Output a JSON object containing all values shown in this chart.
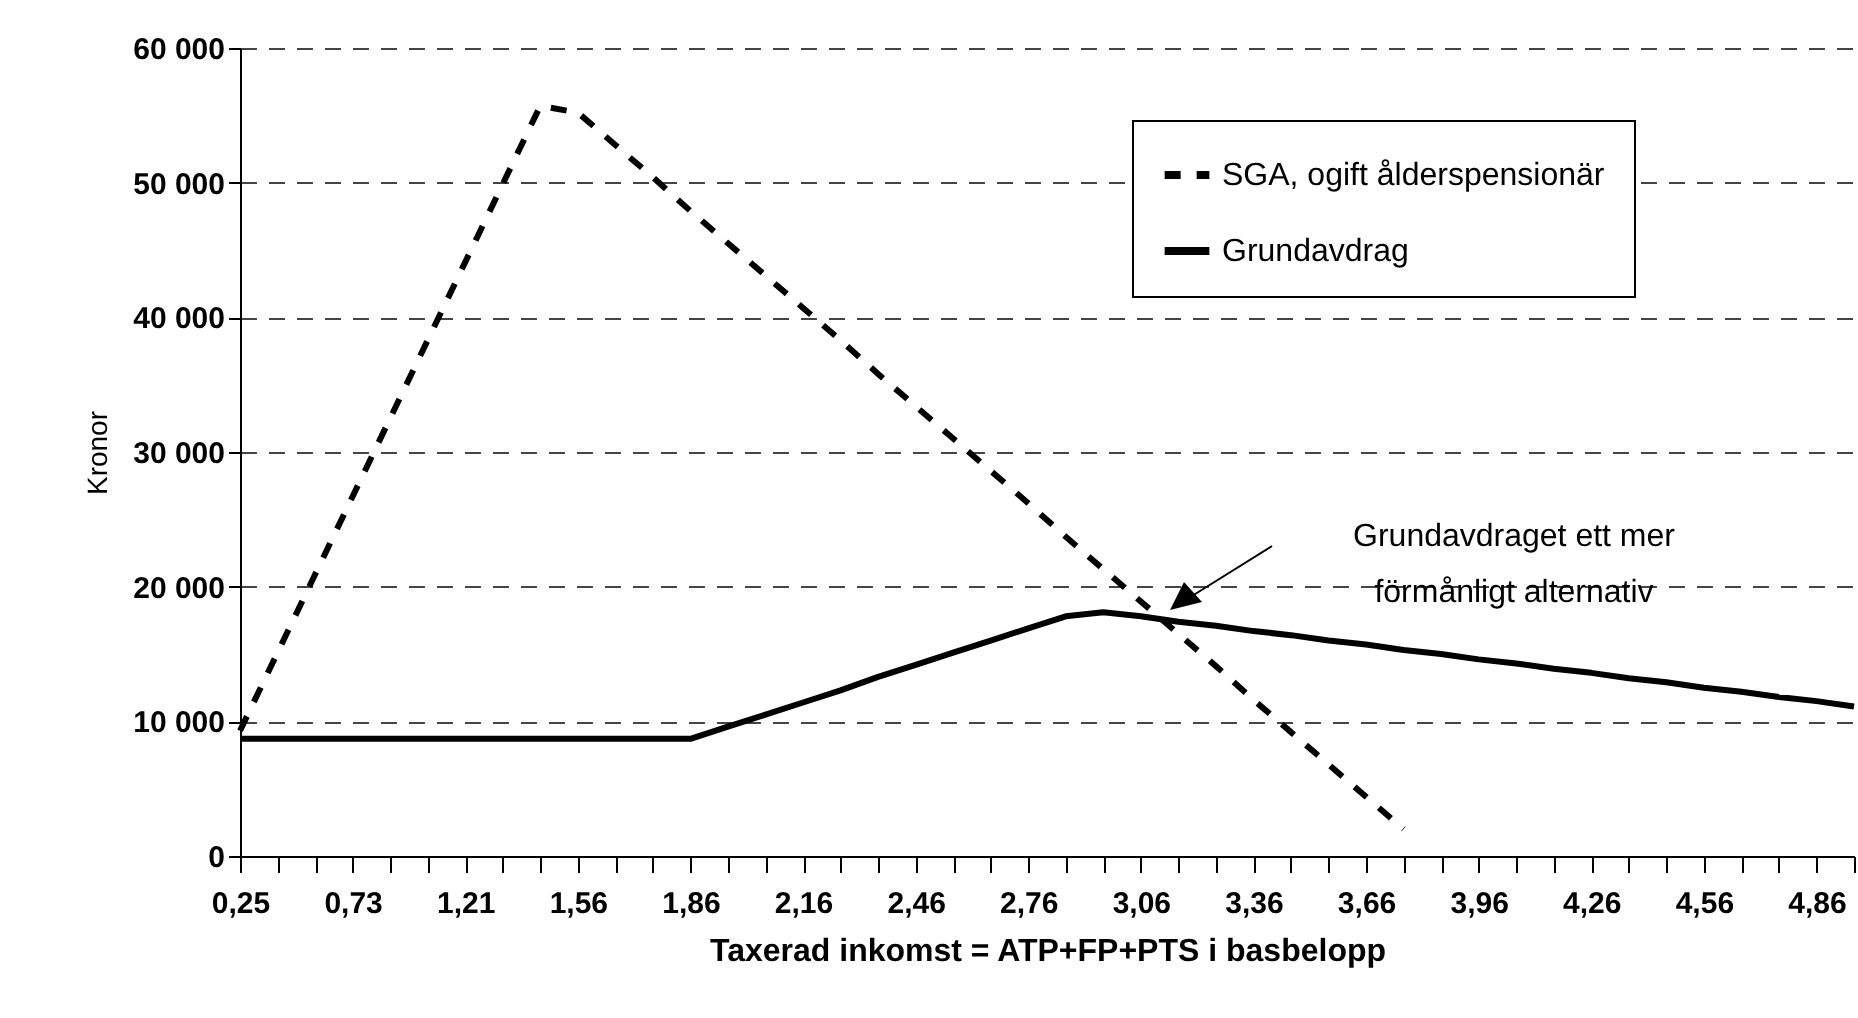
{
  "chart_data": {
    "type": "line",
    "xlabel": "Taxerad inkomst  =  ATP+FP+PTS  i basbelopp",
    "ylabel": "Kronor",
    "categories": [
      "0,25",
      null,
      null,
      "0,73",
      null,
      null,
      "1,21",
      null,
      null,
      "1,56",
      null,
      null,
      "1,86",
      null,
      null,
      "2,16",
      null,
      null,
      "2,46",
      null,
      null,
      "2,76",
      null,
      null,
      "3,06",
      null,
      null,
      "3,36",
      null,
      null,
      "3,66",
      null,
      null,
      "3,96",
      null,
      null,
      "4,26",
      null,
      null,
      "4,56",
      null,
      null,
      "4,86",
      null
    ],
    "series": [
      {
        "name": "SGA, ogift ålderspensionär",
        "color": "#000000",
        "line_style": "dashed",
        "values": [
          9300,
          15100,
          20900,
          26700,
          32500,
          38300,
          44100,
          49900,
          55700,
          55200,
          52800,
          50400,
          47900,
          45500,
          43100,
          40700,
          38300,
          35800,
          33400,
          31000,
          28600,
          26200,
          23700,
          21300,
          18900,
          16500,
          14100,
          11600,
          9200,
          6800,
          4400,
          2000,
          null,
          null,
          null,
          null,
          null,
          null,
          null,
          null,
          null,
          null,
          null,
          null
        ]
      },
      {
        "name": "Grundavdrag",
        "color": "#000000",
        "line_style": "solid",
        "values": [
          8700,
          8700,
          8700,
          8700,
          8700,
          8700,
          8700,
          8700,
          8700,
          8700,
          8700,
          8700,
          8700,
          9600,
          10500,
          11400,
          12300,
          13300,
          14200,
          15100,
          16000,
          16900,
          17800,
          18100,
          17800,
          17400,
          17100,
          16700,
          16400,
          16000,
          15700,
          15300,
          15000,
          14600,
          14300,
          13900,
          13600,
          13200,
          12900,
          12500,
          12200,
          11800,
          11500,
          11100
        ]
      }
    ],
    "ylim": [
      0,
      60000
    ],
    "yticks": [
      {
        "value": 0,
        "label": "0"
      },
      {
        "value": 10000,
        "label": "10 000"
      },
      {
        "value": 20000,
        "label": "20 000"
      },
      {
        "value": 30000,
        "label": "30 000"
      },
      {
        "value": 40000,
        "label": "40 000"
      },
      {
        "value": 50000,
        "label": "50 000"
      },
      {
        "value": 60000,
        "label": "60 000"
      }
    ],
    "grid": "y",
    "legend": "top right",
    "marker": "none",
    "annotations": [
      "Grundavdraget ett mer\nförmånligt alternativ"
    ]
  }
}
